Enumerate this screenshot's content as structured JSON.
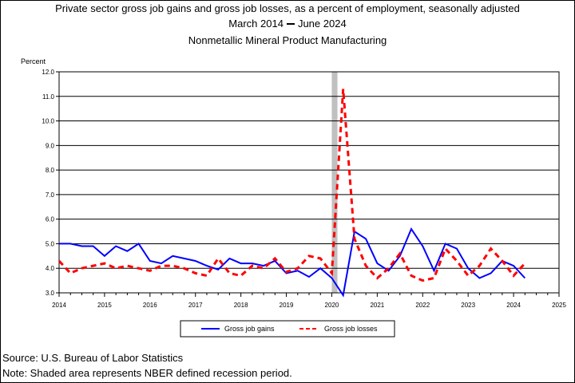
{
  "colors": {
    "gains": "#0000ff",
    "losses": "#ff0000",
    "recession": "#c0c0c0",
    "grid": "#000000"
  },
  "chart_data": {
    "type": "line",
    "title": "Private sector gross job gains and gross job losses, as a percent of employment, seasonally adjusted",
    "subtitle_start": "March 2014",
    "subtitle_end": "June 2024",
    "subtitle2": "Nonmetallic Mineral Product Manufacturing",
    "ylabel": "Percent",
    "ylim": [
      3.0,
      12.0
    ],
    "yticks": [
      "3.0",
      "4.0",
      "5.0",
      "6.0",
      "7.0",
      "8.0",
      "9.0",
      "10.0",
      "11.0",
      "12.0"
    ],
    "xlim": [
      2014,
      2025
    ],
    "xticks": [
      "2014",
      "2015",
      "2016",
      "2017",
      "2018",
      "2019",
      "2020",
      "2021",
      "2022",
      "2023",
      "2024",
      "2025"
    ],
    "grid": true,
    "legend_position": "bottom",
    "recession_shading": {
      "start": 2020.0,
      "end": 2020.125
    },
    "series": [
      {
        "name": "Gross job gains",
        "style": "solid",
        "x": [
          2014.0,
          2014.25,
          2014.5,
          2014.75,
          2015.0,
          2015.25,
          2015.5,
          2015.75,
          2016.0,
          2016.25,
          2016.5,
          2016.75,
          2017.0,
          2017.25,
          2017.5,
          2017.75,
          2018.0,
          2018.25,
          2018.5,
          2018.75,
          2019.0,
          2019.25,
          2019.5,
          2019.75,
          2020.0,
          2020.25,
          2020.5,
          2020.75,
          2021.0,
          2021.25,
          2021.5,
          2021.75,
          2022.0,
          2022.25,
          2022.5,
          2022.75,
          2023.0,
          2023.25,
          2023.5,
          2023.75,
          2024.0,
          2024.25
        ],
        "values": [
          5.0,
          5.0,
          4.9,
          4.9,
          4.5,
          4.9,
          4.7,
          5.0,
          4.3,
          4.2,
          4.5,
          4.4,
          4.3,
          4.1,
          3.95,
          4.4,
          4.2,
          4.2,
          4.1,
          4.3,
          3.8,
          3.9,
          3.65,
          4.0,
          3.6,
          2.9,
          5.5,
          5.2,
          4.2,
          3.9,
          4.5,
          5.6,
          4.9,
          3.9,
          5.0,
          4.8,
          4.0,
          3.6,
          3.8,
          4.3,
          4.1,
          3.6
        ]
      },
      {
        "name": "Gross job losses",
        "style": "dashed",
        "x": [
          2014.0,
          2014.25,
          2014.5,
          2014.75,
          2015.0,
          2015.25,
          2015.5,
          2015.75,
          2016.0,
          2016.25,
          2016.5,
          2016.75,
          2017.0,
          2017.25,
          2017.5,
          2017.75,
          2018.0,
          2018.25,
          2018.5,
          2018.75,
          2019.0,
          2019.25,
          2019.5,
          2019.75,
          2020.0,
          2020.25,
          2020.5,
          2020.75,
          2021.0,
          2021.25,
          2021.5,
          2021.75,
          2022.0,
          2022.25,
          2022.5,
          2022.75,
          2023.0,
          2023.25,
          2023.5,
          2023.75,
          2024.0,
          2024.25
        ],
        "values": [
          4.3,
          3.8,
          4.0,
          4.1,
          4.2,
          4.0,
          4.1,
          4.0,
          3.9,
          4.1,
          4.1,
          4.0,
          3.8,
          3.7,
          4.4,
          3.8,
          3.7,
          4.1,
          4.0,
          4.4,
          3.85,
          4.0,
          4.5,
          4.4,
          3.8,
          11.3,
          5.2,
          4.1,
          3.6,
          4.0,
          4.6,
          3.7,
          3.5,
          3.6,
          4.8,
          4.3,
          3.7,
          4.1,
          4.8,
          4.3,
          3.7,
          4.2
        ]
      }
    ]
  },
  "legend": {
    "gains_label": "Gross job gains",
    "losses_label": "Gross job losses"
  },
  "footer": {
    "source": "Source: U.S. Bureau of Labor Statistics",
    "note": "Note: Shaded area represents NBER defined recession period."
  }
}
